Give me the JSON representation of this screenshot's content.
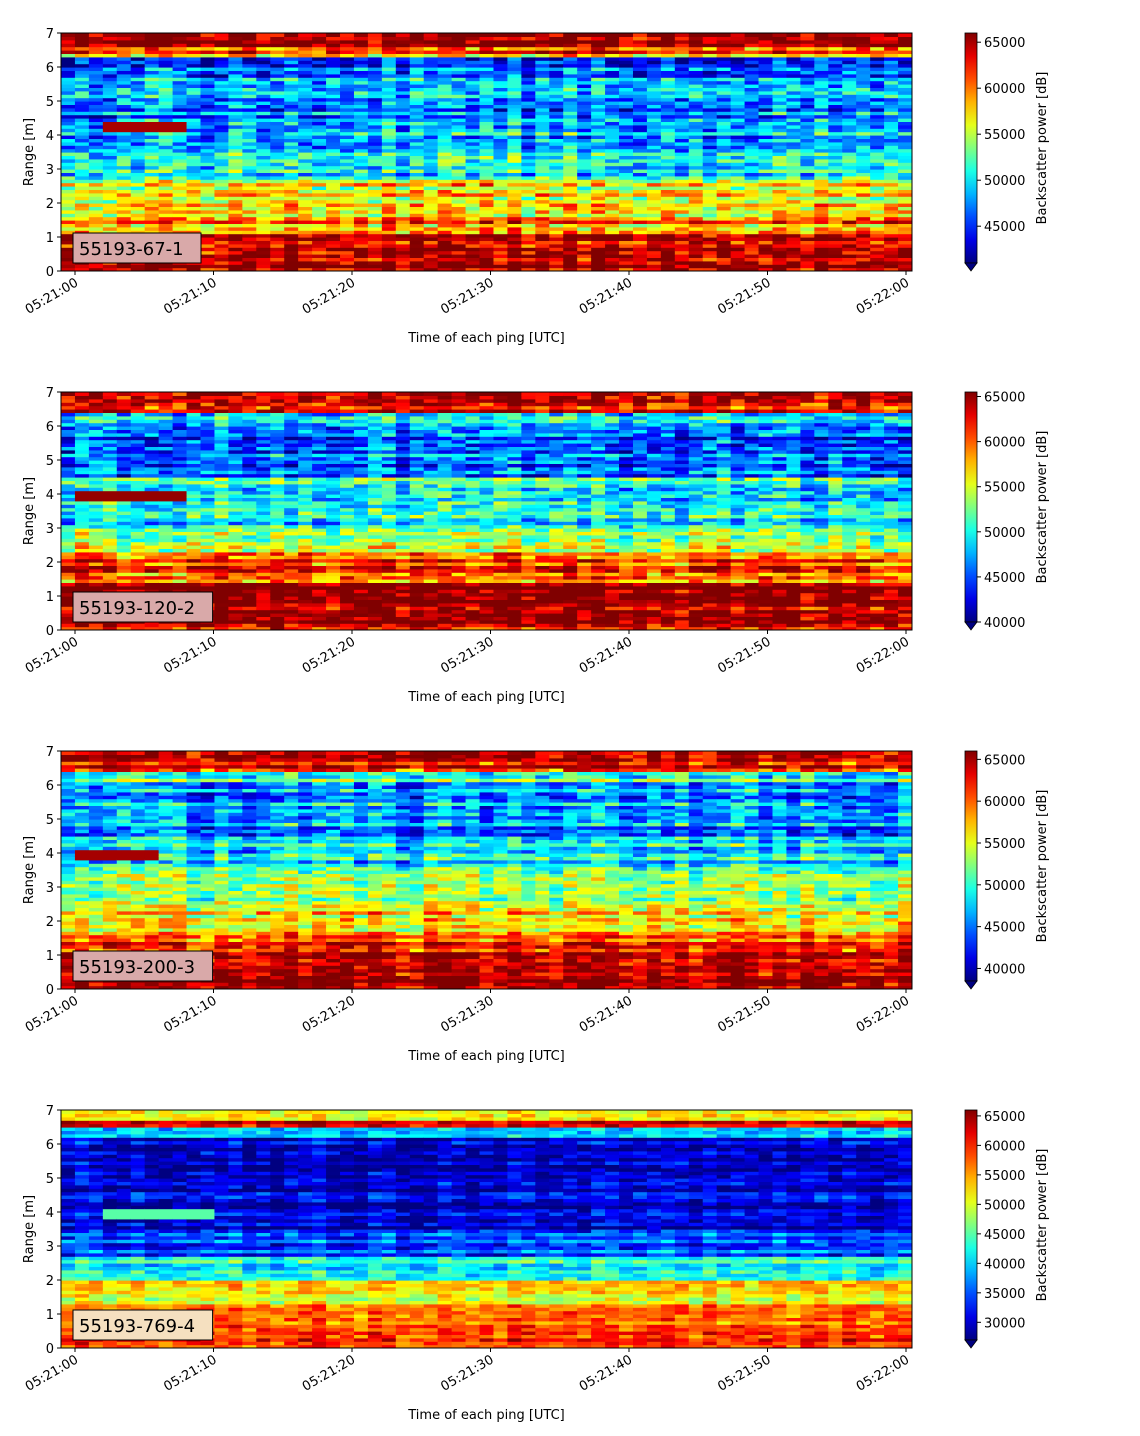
{
  "chart_data": [
    {
      "type": "heatmap",
      "label": "55193-67-1",
      "xlabel": "Time of each ping [UTC]",
      "ylabel": "Range [m]",
      "xticks": [
        "05:21:00",
        "05:21:10",
        "05:21:20",
        "05:21:30",
        "05:21:40",
        "05:21:50",
        "05:22:00"
      ],
      "yticks": [
        "0",
        "1",
        "2",
        "3",
        "4",
        "5",
        "6",
        "7"
      ],
      "ylim": [
        0,
        7
      ],
      "colorbar": {
        "label": "Backscatter power [dB]",
        "ticks": [
          "45000",
          "50000",
          "55000",
          "60000",
          "65000"
        ],
        "range": [
          41000,
          66000
        ],
        "extend": "min"
      },
      "colormap": "jet",
      "label_box_color": "#d9a9a9",
      "profile": [
        {
          "from": 0.0,
          "to": 0.25,
          "value": 65500
        },
        {
          "from": 0.25,
          "to": 1.1,
          "value": 65000
        },
        {
          "from": 1.1,
          "to": 1.6,
          "value": 60000
        },
        {
          "from": 1.6,
          "to": 2.7,
          "value": 57500
        },
        {
          "from": 2.7,
          "to": 3.1,
          "value": 51000
        },
        {
          "from": 3.1,
          "to": 4.5,
          "value": 50000
        },
        {
          "from": 4.5,
          "to": 6.0,
          "value": 48000
        },
        {
          "from": 6.0,
          "to": 6.3,
          "value": 46000
        },
        {
          "from": 6.3,
          "to": 6.65,
          "value": 60000
        },
        {
          "from": 6.65,
          "to": 7.0,
          "value": 65500
        }
      ],
      "feature": {
        "from_s": 2.5,
        "to_s": 7.5,
        "range_m": 4.3,
        "value": 65000
      }
    },
    {
      "type": "heatmap",
      "label": "55193-120-2",
      "xlabel": "Time of each ping [UTC]",
      "ylabel": "Range [m]",
      "xticks": [
        "05:21:00",
        "05:21:10",
        "05:21:20",
        "05:21:30",
        "05:21:40",
        "05:21:50",
        "05:22:00"
      ],
      "yticks": [
        "0",
        "1",
        "2",
        "3",
        "4",
        "5",
        "6",
        "7"
      ],
      "ylim": [
        0,
        7
      ],
      "colorbar": {
        "label": "Backscatter power [dB]",
        "ticks": [
          "40000",
          "45000",
          "50000",
          "55000",
          "60000",
          "65000"
        ],
        "range": [
          40000,
          65500
        ],
        "extend": "min"
      },
      "colormap": "jet",
      "label_box_color": "#d9a9a9",
      "profile": [
        {
          "from": 0.0,
          "to": 0.15,
          "value": 62000
        },
        {
          "from": 0.15,
          "to": 1.4,
          "value": 65500
        },
        {
          "from": 1.4,
          "to": 2.3,
          "value": 60500
        },
        {
          "from": 2.3,
          "to": 3.0,
          "value": 54500
        },
        {
          "from": 3.0,
          "to": 4.5,
          "value": 50000
        },
        {
          "from": 4.5,
          "to": 6.1,
          "value": 46000
        },
        {
          "from": 6.1,
          "to": 6.4,
          "value": 49000
        },
        {
          "from": 6.4,
          "to": 7.0,
          "value": 63000
        }
      ],
      "feature": {
        "from_s": 1.0,
        "to_s": 7.5,
        "range_m": 4.0,
        "value": 65000
      }
    },
    {
      "type": "heatmap",
      "label": "55193-200-3",
      "xlabel": "Time of each ping [UTC]",
      "ylabel": "Range [m]",
      "xticks": [
        "05:21:00",
        "05:21:10",
        "05:21:20",
        "05:21:30",
        "05:21:40",
        "05:21:50",
        "05:22:00"
      ],
      "yticks": [
        "0",
        "1",
        "2",
        "3",
        "4",
        "5",
        "6",
        "7"
      ],
      "ylim": [
        0,
        7
      ],
      "colorbar": {
        "label": "Backscatter power [dB]",
        "ticks": [
          "40000",
          "45000",
          "50000",
          "55000",
          "60000",
          "65000"
        ],
        "range": [
          38500,
          66000
        ],
        "extend": "min"
      },
      "colormap": "jet",
      "label_box_color": "#d9a9a9",
      "profile": [
        {
          "from": 0.0,
          "to": 1.1,
          "value": 65500
        },
        {
          "from": 1.1,
          "to": 1.6,
          "value": 61000
        },
        {
          "from": 1.6,
          "to": 2.6,
          "value": 56000
        },
        {
          "from": 2.6,
          "to": 3.5,
          "value": 52000
        },
        {
          "from": 3.5,
          "to": 4.5,
          "value": 49000
        },
        {
          "from": 4.5,
          "to": 6.1,
          "value": 46000
        },
        {
          "from": 6.1,
          "to": 6.4,
          "value": 50000
        },
        {
          "from": 6.4,
          "to": 7.0,
          "value": 63500
        }
      ],
      "feature": {
        "from_s": 1.0,
        "to_s": 6.0,
        "range_m": 4.0,
        "value": 65000
      }
    },
    {
      "type": "heatmap",
      "label": "55193-769-4",
      "xlabel": "Time of each ping [UTC]",
      "ylabel": "Range [m]",
      "xticks": [
        "05:21:00",
        "05:21:10",
        "05:21:20",
        "05:21:30",
        "05:21:40",
        "05:21:50",
        "05:22:00"
      ],
      "yticks": [
        "0",
        "1",
        "2",
        "3",
        "4",
        "5",
        "6",
        "7"
      ],
      "ylim": [
        0,
        7
      ],
      "colorbar": {
        "label": "Backscatter power [dB]",
        "ticks": [
          "30000",
          "35000",
          "40000",
          "45000",
          "50000",
          "55000",
          "60000",
          "65000"
        ],
        "range": [
          27000,
          66000
        ],
        "extend": "min"
      },
      "colormap": "jet",
      "label_box_color": "#f5e0c0",
      "profile": [
        {
          "from": 0.0,
          "to": 0.2,
          "value": 58000
        },
        {
          "from": 0.2,
          "to": 0.3,
          "value": 64000
        },
        {
          "from": 0.3,
          "to": 1.3,
          "value": 57000
        },
        {
          "from": 1.3,
          "to": 2.0,
          "value": 51000
        },
        {
          "from": 2.0,
          "to": 2.7,
          "value": 43000
        },
        {
          "from": 2.7,
          "to": 3.5,
          "value": 35000
        },
        {
          "from": 3.5,
          "to": 6.2,
          "value": 30000
        },
        {
          "from": 6.2,
          "to": 6.5,
          "value": 39000
        },
        {
          "from": 6.5,
          "to": 6.75,
          "value": 62000
        },
        {
          "from": 6.75,
          "to": 7.0,
          "value": 50000
        }
      ],
      "feature": {
        "from_s": 2.5,
        "to_s": 9.5,
        "range_m": 4.0,
        "value": 45000
      }
    }
  ]
}
